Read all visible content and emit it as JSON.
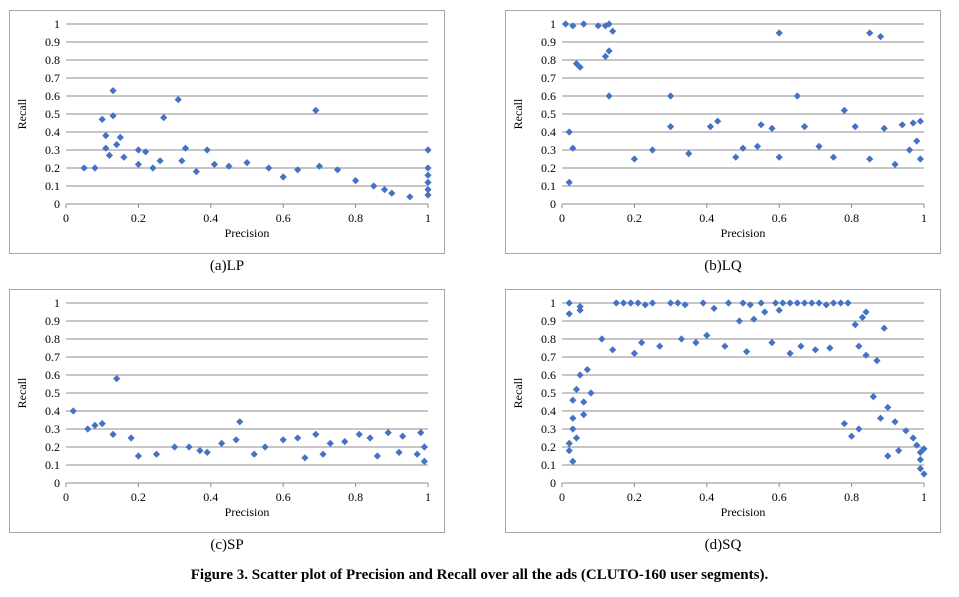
{
  "figure_caption": "Figure 3. Scatter plot of Precision and Recall over all the ads (CLUTO-160 user segments).",
  "colors": {
    "marker": "#4472c4",
    "grid": "#8c8c8c",
    "border": "#a6a6a6"
  },
  "chart_data": [
    {
      "id": "LP",
      "type": "scatter",
      "caption": "(a)LP",
      "xlabel": "Precision",
      "ylabel": "Recall",
      "xlim": [
        0,
        1
      ],
      "ylim": [
        0,
        1
      ],
      "xticks": [
        "0",
        "0.2",
        "0.4",
        "0.6",
        "0.8",
        "1"
      ],
      "yticks": [
        "0",
        "0.1",
        "0.2",
        "0.3",
        "0.4",
        "0.5",
        "0.6",
        "0.7",
        "0.8",
        "0.9",
        "1"
      ],
      "grid": true,
      "marker": "diamond",
      "points": [
        [
          0.13,
          0.63
        ],
        [
          0.31,
          0.58
        ],
        [
          0.69,
          0.52
        ],
        [
          0.13,
          0.49
        ],
        [
          0.1,
          0.47
        ],
        [
          0.27,
          0.48
        ],
        [
          0.11,
          0.38
        ],
        [
          0.15,
          0.37
        ],
        [
          0.14,
          0.33
        ],
        [
          0.11,
          0.31
        ],
        [
          0.2,
          0.3
        ],
        [
          0.33,
          0.31
        ],
        [
          0.39,
          0.3
        ],
        [
          0.22,
          0.29
        ],
        [
          0.16,
          0.26
        ],
        [
          0.12,
          0.27
        ],
        [
          0.26,
          0.24
        ],
        [
          0.32,
          0.24
        ],
        [
          0.41,
          0.22
        ],
        [
          0.45,
          0.21
        ],
        [
          0.5,
          0.23
        ],
        [
          0.56,
          0.2
        ],
        [
          0.64,
          0.19
        ],
        [
          0.7,
          0.21
        ],
        [
          0.75,
          0.19
        ],
        [
          1.0,
          0.3
        ],
        [
          1.0,
          0.2
        ],
        [
          1.0,
          0.16
        ],
        [
          1.0,
          0.12
        ],
        [
          1.0,
          0.08
        ],
        [
          1.0,
          0.05
        ],
        [
          0.2,
          0.22
        ],
        [
          0.24,
          0.2
        ],
        [
          0.08,
          0.2
        ],
        [
          0.05,
          0.2
        ],
        [
          0.36,
          0.18
        ],
        [
          0.6,
          0.15
        ],
        [
          0.8,
          0.13
        ],
        [
          0.85,
          0.1
        ],
        [
          0.9,
          0.06
        ],
        [
          0.88,
          0.08
        ],
        [
          0.95,
          0.04
        ]
      ]
    },
    {
      "id": "LQ",
      "type": "scatter",
      "caption": "(b)LQ",
      "xlabel": "Precision",
      "ylabel": "Recall",
      "xlim": [
        0,
        1
      ],
      "ylim": [
        0,
        1
      ],
      "xticks": [
        "0",
        "0.2",
        "0.4",
        "0.6",
        "0.8",
        "1"
      ],
      "yticks": [
        "0",
        "0.1",
        "0.2",
        "0.3",
        "0.4",
        "0.5",
        "0.6",
        "0.7",
        "0.8",
        "0.9",
        "1"
      ],
      "grid": true,
      "marker": "diamond",
      "points": [
        [
          0.01,
          1.0
        ],
        [
          0.03,
          0.99
        ],
        [
          0.06,
          1.0
        ],
        [
          0.1,
          0.99
        ],
        [
          0.12,
          0.99
        ],
        [
          0.13,
          1.0
        ],
        [
          0.14,
          0.96
        ],
        [
          0.6,
          0.95
        ],
        [
          0.85,
          0.95
        ],
        [
          0.88,
          0.93
        ],
        [
          0.04,
          0.78
        ],
        [
          0.05,
          0.76
        ],
        [
          0.13,
          0.85
        ],
        [
          0.12,
          0.82
        ],
        [
          0.3,
          0.6
        ],
        [
          0.65,
          0.6
        ],
        [
          0.78,
          0.52
        ],
        [
          0.43,
          0.46
        ],
        [
          0.41,
          0.43
        ],
        [
          0.55,
          0.44
        ],
        [
          0.58,
          0.42
        ],
        [
          0.67,
          0.43
        ],
        [
          0.81,
          0.43
        ],
        [
          0.89,
          0.42
        ],
        [
          0.94,
          0.44
        ],
        [
          0.97,
          0.45
        ],
        [
          0.99,
          0.46
        ],
        [
          0.98,
          0.35
        ],
        [
          0.96,
          0.3
        ],
        [
          0.99,
          0.25
        ],
        [
          0.71,
          0.32
        ],
        [
          0.5,
          0.31
        ],
        [
          0.54,
          0.32
        ],
        [
          0.25,
          0.3
        ],
        [
          0.3,
          0.43
        ],
        [
          0.2,
          0.25
        ],
        [
          0.35,
          0.28
        ],
        [
          0.48,
          0.26
        ],
        [
          0.6,
          0.26
        ],
        [
          0.75,
          0.26
        ],
        [
          0.85,
          0.25
        ],
        [
          0.92,
          0.22
        ],
        [
          0.02,
          0.4
        ],
        [
          0.03,
          0.31
        ],
        [
          0.02,
          0.12
        ],
        [
          0.13,
          0.6
        ]
      ]
    },
    {
      "id": "SP",
      "type": "scatter",
      "caption": "(c)SP",
      "xlabel": "Precision",
      "ylabel": "Recall",
      "xlim": [
        0,
        1
      ],
      "ylim": [
        0,
        1
      ],
      "xticks": [
        "0",
        "0.2",
        "0.4",
        "0.6",
        "0.8",
        "1"
      ],
      "yticks": [
        "0",
        "0.1",
        "0.2",
        "0.3",
        "0.4",
        "0.5",
        "0.6",
        "0.7",
        "0.8",
        "0.9",
        "1"
      ],
      "grid": true,
      "marker": "diamond",
      "points": [
        [
          0.14,
          0.58
        ],
        [
          0.02,
          0.4
        ],
        [
          0.48,
          0.34
        ],
        [
          0.1,
          0.33
        ],
        [
          0.08,
          0.32
        ],
        [
          0.06,
          0.3
        ],
        [
          0.13,
          0.27
        ],
        [
          0.18,
          0.25
        ],
        [
          0.3,
          0.2
        ],
        [
          0.34,
          0.2
        ],
        [
          0.43,
          0.22
        ],
        [
          0.47,
          0.24
        ],
        [
          0.55,
          0.2
        ],
        [
          0.6,
          0.24
        ],
        [
          0.64,
          0.25
        ],
        [
          0.69,
          0.27
        ],
        [
          0.73,
          0.22
        ],
        [
          0.77,
          0.23
        ],
        [
          0.81,
          0.27
        ],
        [
          0.84,
          0.25
        ],
        [
          0.89,
          0.28
        ],
        [
          0.93,
          0.26
        ],
        [
          0.98,
          0.28
        ],
        [
          0.99,
          0.2
        ],
        [
          0.97,
          0.16
        ],
        [
          0.99,
          0.12
        ],
        [
          0.25,
          0.16
        ],
        [
          0.2,
          0.15
        ],
        [
          0.37,
          0.18
        ],
        [
          0.39,
          0.17
        ],
        [
          0.52,
          0.16
        ],
        [
          0.66,
          0.14
        ],
        [
          0.71,
          0.16
        ],
        [
          0.86,
          0.15
        ],
        [
          0.92,
          0.17
        ]
      ]
    },
    {
      "id": "SQ",
      "type": "scatter",
      "caption": "(d)SQ",
      "xlabel": "Precision",
      "ylabel": "Recall",
      "xlim": [
        0,
        1
      ],
      "ylim": [
        0,
        1
      ],
      "xticks": [
        "0",
        "0.2",
        "0.4",
        "0.6",
        "0.8",
        "1"
      ],
      "yticks": [
        "0",
        "0.1",
        "0.2",
        "0.3",
        "0.4",
        "0.5",
        "0.6",
        "0.7",
        "0.8",
        "0.9",
        "1"
      ],
      "grid": true,
      "marker": "diamond",
      "points": [
        [
          0.02,
          1.0
        ],
        [
          0.02,
          0.94
        ],
        [
          0.05,
          0.96
        ],
        [
          0.05,
          0.98
        ],
        [
          0.15,
          1.0
        ],
        [
          0.17,
          1.0
        ],
        [
          0.19,
          1.0
        ],
        [
          0.21,
          1.0
        ],
        [
          0.23,
          0.99
        ],
        [
          0.25,
          1.0
        ],
        [
          0.3,
          1.0
        ],
        [
          0.32,
          1.0
        ],
        [
          0.34,
          0.99
        ],
        [
          0.39,
          1.0
        ],
        [
          0.42,
          0.97
        ],
        [
          0.46,
          1.0
        ],
        [
          0.5,
          1.0
        ],
        [
          0.52,
          0.99
        ],
        [
          0.55,
          1.0
        ],
        [
          0.59,
          1.0
        ],
        [
          0.61,
          1.0
        ],
        [
          0.63,
          1.0
        ],
        [
          0.65,
          1.0
        ],
        [
          0.67,
          1.0
        ],
        [
          0.69,
          1.0
        ],
        [
          0.71,
          1.0
        ],
        [
          0.73,
          0.99
        ],
        [
          0.75,
          1.0
        ],
        [
          0.77,
          1.0
        ],
        [
          0.79,
          1.0
        ],
        [
          0.6,
          0.96
        ],
        [
          0.56,
          0.95
        ],
        [
          0.53,
          0.91
        ],
        [
          0.49,
          0.9
        ],
        [
          0.84,
          0.95
        ],
        [
          0.83,
          0.92
        ],
        [
          0.81,
          0.88
        ],
        [
          0.89,
          0.86
        ],
        [
          0.11,
          0.8
        ],
        [
          0.14,
          0.74
        ],
        [
          0.2,
          0.72
        ],
        [
          0.22,
          0.78
        ],
        [
          0.27,
          0.76
        ],
        [
          0.33,
          0.8
        ],
        [
          0.37,
          0.78
        ],
        [
          0.4,
          0.82
        ],
        [
          0.45,
          0.76
        ],
        [
          0.51,
          0.73
        ],
        [
          0.58,
          0.78
        ],
        [
          0.63,
          0.72
        ],
        [
          0.66,
          0.76
        ],
        [
          0.7,
          0.74
        ],
        [
          0.74,
          0.75
        ],
        [
          0.82,
          0.76
        ],
        [
          0.84,
          0.71
        ],
        [
          0.87,
          0.68
        ],
        [
          0.07,
          0.63
        ],
        [
          0.05,
          0.6
        ],
        [
          0.04,
          0.52
        ],
        [
          0.03,
          0.46
        ],
        [
          0.03,
          0.36
        ],
        [
          0.03,
          0.3
        ],
        [
          0.04,
          0.25
        ],
        [
          0.02,
          0.22
        ],
        [
          0.02,
          0.18
        ],
        [
          0.03,
          0.12
        ],
        [
          0.06,
          0.45
        ],
        [
          0.08,
          0.5
        ],
        [
          0.06,
          0.38
        ],
        [
          0.86,
          0.48
        ],
        [
          0.9,
          0.42
        ],
        [
          0.88,
          0.36
        ],
        [
          0.92,
          0.34
        ],
        [
          0.95,
          0.29
        ],
        [
          0.98,
          0.21
        ],
        [
          0.99,
          0.17
        ],
        [
          0.99,
          0.13
        ],
        [
          0.99,
          0.08
        ],
        [
          1.0,
          0.05
        ],
        [
          1.0,
          0.19
        ],
        [
          0.97,
          0.25
        ],
        [
          0.93,
          0.18
        ],
        [
          0.9,
          0.15
        ],
        [
          0.82,
          0.3
        ],
        [
          0.78,
          0.33
        ],
        [
          0.8,
          0.26
        ]
      ]
    }
  ]
}
